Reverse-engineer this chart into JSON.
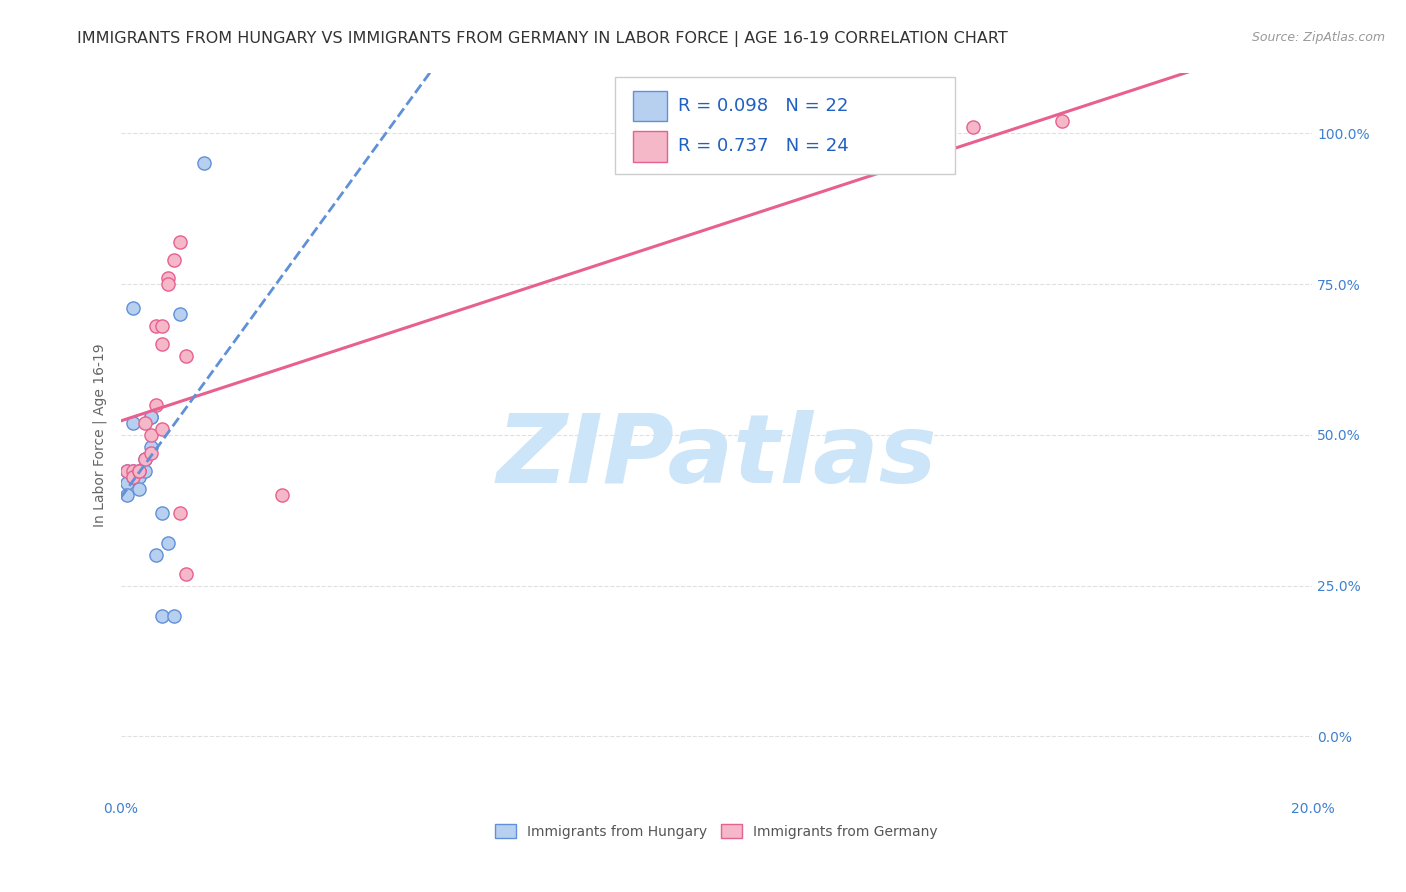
{
  "title": "IMMIGRANTS FROM HUNGARY VS IMMIGRANTS FROM GERMANY IN LABOR FORCE | AGE 16-19 CORRELATION CHART",
  "source": "Source: ZipAtlas.com",
  "ylabel": "In Labor Force | Age 16-19",
  "xlim": [
    0.0,
    0.2
  ],
  "ylim": [
    -0.1,
    1.1
  ],
  "yticks": [
    0.0,
    0.25,
    0.5,
    0.75,
    1.0
  ],
  "ytick_labels": [
    "0.0%",
    "25.0%",
    "50.0%",
    "75.0%",
    "100.0%"
  ],
  "xtick_positions": [
    0.0,
    0.04,
    0.08,
    0.12,
    0.16,
    0.2
  ],
  "xtick_labels": [
    "0.0%",
    "",
    "",
    "",
    "",
    "20.0%"
  ],
  "hungary_x": [
    0.001,
    0.001,
    0.001,
    0.002,
    0.002,
    0.002,
    0.002,
    0.003,
    0.003,
    0.003,
    0.004,
    0.004,
    0.005,
    0.005,
    0.005,
    0.006,
    0.007,
    0.007,
    0.008,
    0.009,
    0.01,
    0.014
  ],
  "hungary_y": [
    0.44,
    0.42,
    0.4,
    0.71,
    0.52,
    0.44,
    0.43,
    0.44,
    0.43,
    0.41,
    0.46,
    0.44,
    0.53,
    0.53,
    0.48,
    0.3,
    0.37,
    0.2,
    0.32,
    0.2,
    0.7,
    0.95
  ],
  "germany_x": [
    0.001,
    0.002,
    0.002,
    0.003,
    0.003,
    0.004,
    0.004,
    0.005,
    0.005,
    0.006,
    0.006,
    0.007,
    0.007,
    0.007,
    0.008,
    0.008,
    0.009,
    0.01,
    0.01,
    0.011,
    0.011,
    0.027,
    0.143,
    0.158
  ],
  "germany_y": [
    0.44,
    0.44,
    0.43,
    0.44,
    0.44,
    0.46,
    0.52,
    0.5,
    0.47,
    0.68,
    0.55,
    0.51,
    0.65,
    0.68,
    0.76,
    0.75,
    0.79,
    0.82,
    0.37,
    0.27,
    0.63,
    0.4,
    1.01,
    1.02
  ],
  "hungary_color": "#b8d0f0",
  "germany_color": "#f5b8c8",
  "hungary_line_color": "#6090d8",
  "germany_line_color": "#e86090",
  "hungary_R": 0.098,
  "hungary_N": 22,
  "germany_R": 0.737,
  "germany_N": 24,
  "watermark": "ZIPatlas",
  "watermark_color": "#cce5f8",
  "grid_color": "#e0e0e0",
  "grid_linestyle": "--",
  "background_color": "#ffffff",
  "title_fontsize": 11.5,
  "axis_label_fontsize": 10,
  "tick_fontsize": 10,
  "legend_fontsize": 13,
  "tick_color": "#4080d0",
  "axis_label_color": "#666666",
  "title_color": "#333333",
  "source_color": "#999999",
  "legend_text_color": "#2060c0"
}
